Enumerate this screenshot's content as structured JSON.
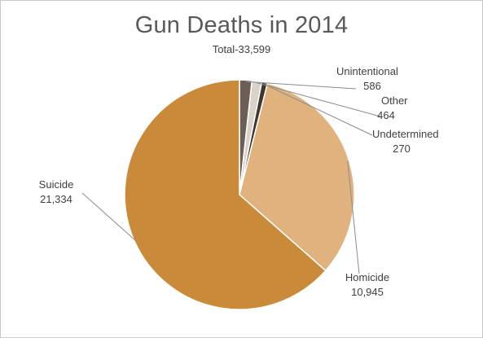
{
  "chart_data": {
    "type": "pie",
    "title": "Gun Deaths in 2014",
    "subtitle": "Total-33,599",
    "start_angle_deg": 90,
    "direction": "clockwise",
    "slices": [
      {
        "label": "Unintentional",
        "value_text": "586",
        "value": 586,
        "color": "#6b5f55"
      },
      {
        "label": "Other",
        "value_text": "464",
        "value": 464,
        "color": "#d9d2c9"
      },
      {
        "label": "Undetermined",
        "value_text": "270",
        "value": 270,
        "color": "#3f362e"
      },
      {
        "label": "Homicide",
        "value_text": "10,945",
        "value": 10945,
        "color": "#e0b27e"
      },
      {
        "label": "Suicide",
        "value_text": "21,334",
        "value": 21334,
        "color": "#c98b3a"
      }
    ],
    "slice_border_color": "#ffffff",
    "leader_line_color": "#8c8c8c",
    "legend": "none"
  }
}
